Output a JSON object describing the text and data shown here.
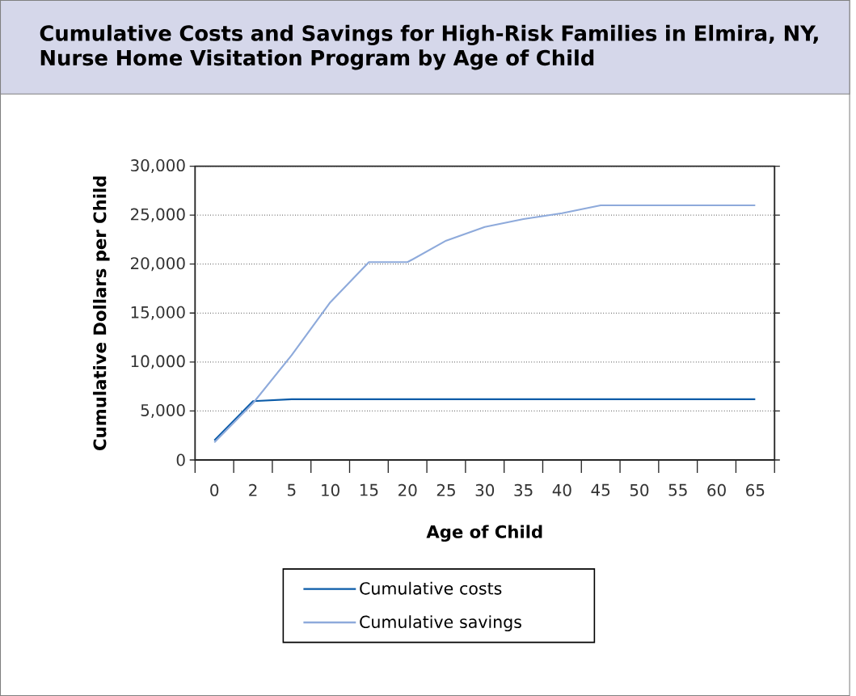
{
  "chart_data": {
    "type": "line",
    "title": "Cumulative Costs and Savings for High-Risk Families in Elmira, NY, Nurse Home Visitation Program by Age of Child",
    "xlabel": "Age of Child",
    "ylabel": "Cumulative Dollars per Child",
    "categories": [
      "0",
      "2",
      "5",
      "10",
      "15",
      "20",
      "25",
      "30",
      "35",
      "40",
      "45",
      "50",
      "55",
      "60",
      "65"
    ],
    "series": [
      {
        "name": "Cumulative costs",
        "color": "#0a5ba8",
        "values": [
          2000,
          6000,
          6200,
          6200,
          6200,
          6200,
          6200,
          6200,
          6200,
          6200,
          6200,
          6200,
          6200,
          6200,
          6200
        ]
      },
      {
        "name": "Cumulative savings",
        "color": "#8eaadb",
        "values": [
          1800,
          5800,
          10700,
          16100,
          20200,
          20200,
          22400,
          23800,
          24600,
          25200,
          26000,
          26000,
          26000,
          26000,
          26000
        ]
      }
    ],
    "ylim": [
      0,
      30000
    ],
    "yticks": [
      {
        "value": 0,
        "label": "0"
      },
      {
        "value": 5000,
        "label": "5,000"
      },
      {
        "value": 10000,
        "label": "10,000"
      },
      {
        "value": 15000,
        "label": "15,000"
      },
      {
        "value": 20000,
        "label": "20,000"
      },
      {
        "value": 25000,
        "label": "25,000"
      },
      {
        "value": 30000,
        "label": "30,000"
      }
    ],
    "grid": "y",
    "legend": "bottom",
    "marker": "none",
    "line_style": "solid"
  }
}
